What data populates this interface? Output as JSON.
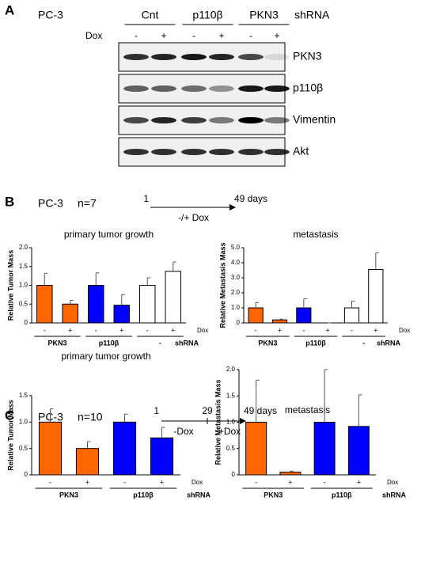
{
  "panel_a": {
    "label": "A",
    "cell_line": "PC-3",
    "groups": [
      "Cnt",
      "p110β",
      "PKN3"
    ],
    "shrna_label": "shRNA",
    "dox_label": "Dox",
    "dox_signs": [
      "-",
      "+",
      "-",
      "+",
      "-",
      "+"
    ],
    "blots": [
      "PKN3",
      "p110β",
      "Vimentin",
      "Akt"
    ]
  },
  "panel_b": {
    "label": "B",
    "cell_line": "PC-3",
    "n": "n=7",
    "timeline": {
      "start": "1",
      "end": "49 days",
      "treatment": "-/+ Dox"
    }
  },
  "panel_c": {
    "label": "C",
    "cell_line": "PC-3",
    "n": "n=10",
    "timeline": {
      "start": "1",
      "mid": "29",
      "end": "49 days",
      "before": "-Dox",
      "after": "+Dox"
    }
  },
  "chart_data": [
    {
      "type": "bar",
      "title": "primary tumor growth",
      "y_label": "Relative Tumor  Mass",
      "categories": [
        "-",
        "+",
        "-",
        "+",
        "-",
        "+"
      ],
      "groups": [
        "PKN3",
        "p110β",
        "-"
      ],
      "group_label": "shRNA",
      "dox_label": "Dox",
      "values": [
        1.0,
        0.5,
        1.0,
        0.47,
        1.0,
        1.37
      ],
      "errors": [
        0.32,
        0.1,
        0.33,
        0.28,
        0.2,
        0.25
      ],
      "colors": [
        "#ff6600",
        "#ff6600",
        "#0000ff",
        "#0000ff",
        "#ffffff",
        "#ffffff"
      ],
      "ylim": [
        0,
        2
      ],
      "yticks": [
        0,
        0.5,
        {
          "value": 1,
          "label": "1.0"
        },
        1.5,
        {
          "value": 2,
          "label": "2.0"
        }
      ]
    },
    {
      "type": "bar",
      "title": "metastasis",
      "y_label": "Relative Metastasis Mass",
      "categories": [
        "-",
        "+",
        "-",
        "+",
        "-",
        "+"
      ],
      "groups": [
        "PKN3",
        "p110β",
        "-"
      ],
      "group_label": "shRNA",
      "dox_label": "Dox",
      "values": [
        1.0,
        0.2,
        1.0,
        0,
        1.0,
        3.55
      ],
      "errors": [
        0.35,
        0.05,
        0.6,
        0,
        0.45,
        1.1
      ],
      "colors": [
        "#ff6600",
        "#ff6600",
        "#0000ff",
        "#0000ff",
        "#ffffff",
        "#ffffff"
      ],
      "ylim": [
        0,
        5
      ],
      "yticks": [
        0,
        {
          "value": 1,
          "label": "1.0"
        },
        {
          "value": 2,
          "label": "2.0"
        },
        {
          "value": 3,
          "label": "3.0"
        },
        {
          "value": 4,
          "label": "4.0"
        },
        {
          "value": 5,
          "label": "5.0"
        }
      ]
    },
    {
      "type": "bar",
      "title": "primary tumor growth",
      "y_label": "Relative Tumor  Mass",
      "categories": [
        "-",
        "+",
        "-",
        "+"
      ],
      "groups": [
        "PKN3",
        "p110β"
      ],
      "group_label": "shRNA",
      "dox_label": "Dox",
      "values": [
        1.0,
        0.5,
        1.0,
        0.7
      ],
      "errors": [
        0.25,
        0.13,
        0.15,
        0.2
      ],
      "colors": [
        "#ff6600",
        "#ff6600",
        "#0000ff",
        "#0000ff"
      ],
      "ylim": [
        0,
        1.5
      ],
      "yticks": [
        0,
        0.5,
        {
          "value": 1,
          "label": "1.0"
        },
        1.5
      ]
    },
    {
      "type": "bar",
      "title": "metastasis",
      "y_label": "Relative Metastasis Mass",
      "categories": [
        "-",
        "+",
        "-",
        "+"
      ],
      "groups": [
        "PKN3",
        "p110β"
      ],
      "group_label": "shRNA",
      "dox_label": "Dox",
      "values": [
        1.0,
        0.05,
        1.0,
        0.92
      ],
      "errors": [
        0.8,
        0.02,
        1.0,
        0.6
      ],
      "colors": [
        "#ff6600",
        "#ff6600",
        "#0000ff",
        "#0000ff"
      ],
      "ylim": [
        0,
        2
      ],
      "yticks": [
        0,
        0.5,
        {
          "value": 1,
          "label": "1.0"
        },
        1.5,
        {
          "value": 2,
          "label": "2.0"
        }
      ]
    }
  ]
}
